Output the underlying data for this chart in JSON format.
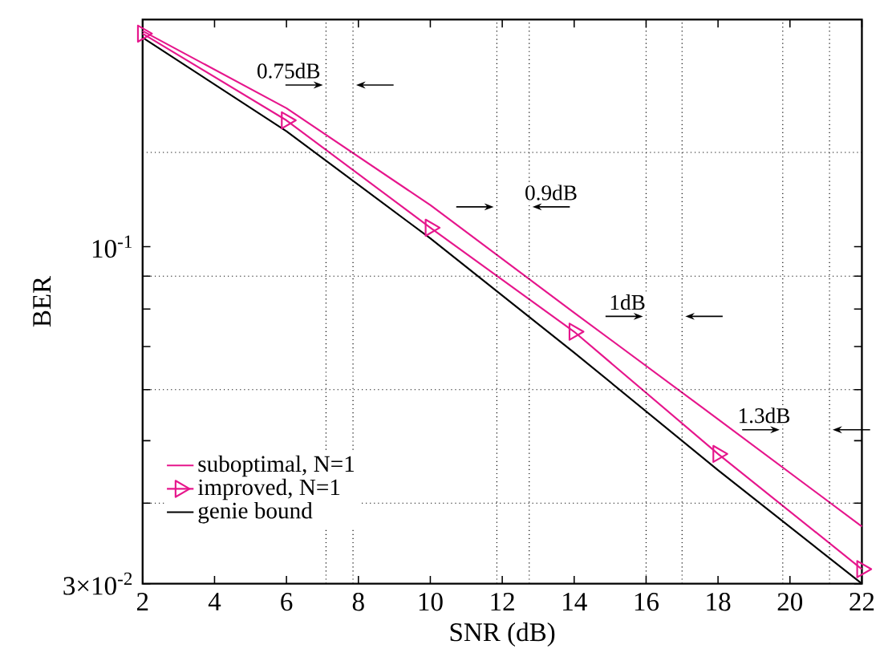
{
  "chart_data": {
    "type": "line",
    "xlabel": "SNR (dB)",
    "ylabel": "BER",
    "log": "y",
    "xlim": [
      2,
      22
    ],
    "ylim": [
      0.03,
      0.225
    ],
    "xticks": [
      2,
      4,
      6,
      8,
      10,
      12,
      14,
      16,
      18,
      20,
      22
    ],
    "yticks": [
      {
        "value": 0.03,
        "label": "3×10$^{-2}$"
      },
      {
        "value": 0.04,
        "label": null
      },
      {
        "value": 0.05,
        "label": null
      },
      {
        "value": 0.06,
        "label": null
      },
      {
        "value": 0.07,
        "label": null
      },
      {
        "value": 0.08,
        "label": null
      },
      {
        "value": 0.09,
        "label": null
      },
      {
        "value": 0.1,
        "label": "10$^{-1}$"
      }
    ],
    "x": [
      2,
      6,
      10,
      14,
      18,
      22
    ],
    "series": [
      {
        "name": "suboptimal, N=1",
        "color": "#e6168c",
        "values": [
          0.216,
          0.164,
          0.116,
          0.079,
          0.054,
          0.0368
        ],
        "marker": "none",
        "line_style": "solid"
      },
      {
        "name": "improved, N=1",
        "color": "#e6168c",
        "values": [
          0.214,
          0.157,
          0.107,
          0.0738,
          0.0477,
          0.0316
        ],
        "marker": "triangle",
        "line_style": "solid"
      },
      {
        "name": "genie bound",
        "color": "#000000",
        "values": [
          0.211,
          0.151,
          0.103,
          0.0685,
          0.045,
          0.03
        ],
        "marker": "none",
        "line_style": "solid"
      }
    ],
    "legend": "bottom left",
    "grid": false,
    "ref_lines": [
      {
        "axis": "x",
        "value": 7.1,
        "line_style": "dotted"
      },
      {
        "axis": "x",
        "value": 7.85,
        "line_style": "dotted"
      },
      {
        "axis": "x",
        "value": 11.85,
        "line_style": "dotted"
      },
      {
        "axis": "x",
        "value": 12.75,
        "line_style": "dotted"
      },
      {
        "axis": "x",
        "value": 16.0,
        "line_style": "dotted"
      },
      {
        "axis": "x",
        "value": 17.0,
        "line_style": "dotted"
      },
      {
        "axis": "x",
        "value": 19.8,
        "line_style": "dotted"
      },
      {
        "axis": "x",
        "value": 21.1,
        "line_style": "dotted"
      },
      {
        "axis": "y",
        "value": 0.04,
        "line_style": "dotted"
      },
      {
        "axis": "y",
        "value": 0.06,
        "line_style": "dotted"
      },
      {
        "axis": "y",
        "value": 0.09,
        "line_style": "dotted"
      },
      {
        "axis": "y",
        "value": 0.14,
        "line_style": "dotted"
      }
    ],
    "annotations": [
      "0.75dB",
      "0.9dB",
      "1dB",
      "1.3dB"
    ]
  }
}
